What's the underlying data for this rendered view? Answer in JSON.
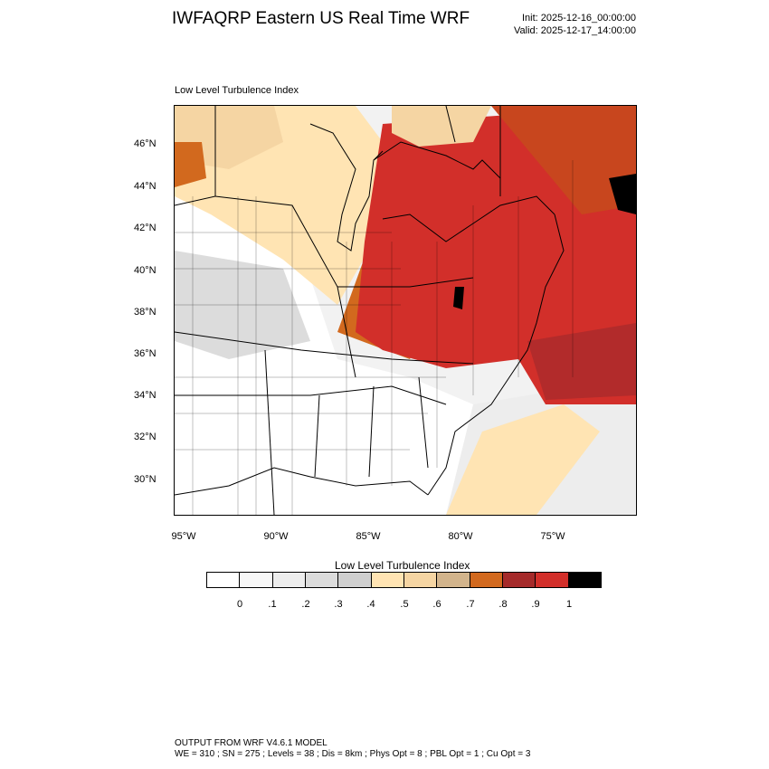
{
  "header": {
    "title": "IWFAQRP Eastern US Real Time WRF",
    "init": "Init: 2025-12-16_00:00:00",
    "valid": "Valid: 2025-12-17_14:00:00"
  },
  "map": {
    "label": "Low Level Turbulence Index",
    "lat_labels": [
      "46°N",
      "44°N",
      "42°N",
      "40°N",
      "38°N",
      "36°N",
      "34°N",
      "32°N",
      "30°N"
    ],
    "lon_labels": [
      "95°W",
      "90°W",
      "85°W",
      "80°W",
      "75°W"
    ]
  },
  "colorbar": {
    "title": "Low Level Turbulence Index",
    "colors": [
      "#ffffff",
      "#f7f7f7",
      "#ededed",
      "#dcdcdc",
      "#cfcfcf",
      "#ffe4b3",
      "#f5d5a3",
      "#d2b48c",
      "#d2691e",
      "#a52a2a",
      "#d22f2a",
      "#000000"
    ],
    "tick_labels": [
      "0",
      ".1",
      ".2",
      ".3",
      ".4",
      ".5",
      ".6",
      ".7",
      ".8",
      ".9",
      "1"
    ]
  },
  "footer": {
    "line1": "OUTPUT FROM WRF V4.6.1 MODEL",
    "line2": "WE = 310 ; SN = 275 ; Levels = 38 ; Dis = 8km ; Phys Opt = 8 ; PBL Opt = 1 ; Cu Opt = 3"
  }
}
